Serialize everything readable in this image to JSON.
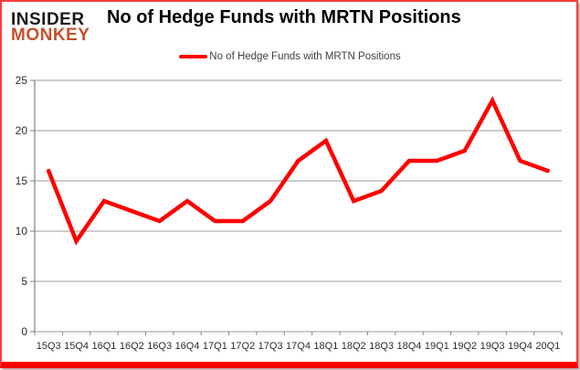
{
  "branding": {
    "logo_line1": "INSIDER",
    "logo_line2": "MONKEY",
    "logo_color_primary": "#1a1a1a",
    "logo_color_secondary": "#c4502c"
  },
  "header": {
    "title": "No of Hedge Funds with MRTN Positions"
  },
  "legend": {
    "label": "No of Hedge Funds with MRTN Positions",
    "swatch_color": "#fe0000"
  },
  "frame": {
    "border_color": "#fe0000"
  },
  "chart_data": {
    "type": "line",
    "title": "No of Hedge Funds with MRTN Positions",
    "categories": [
      "15Q3",
      "15Q4",
      "16Q1",
      "16Q2",
      "16Q3",
      "16Q4",
      "17Q1",
      "17Q2",
      "17Q3",
      "17Q4",
      "18Q1",
      "18Q2",
      "18Q3",
      "18Q4",
      "19Q1",
      "19Q2",
      "19Q3",
      "19Q4",
      "20Q1"
    ],
    "series": [
      {
        "name": "No of Hedge Funds with MRTN Positions",
        "color": "#fe0000",
        "values": [
          16,
          9,
          13,
          12,
          11,
          13,
          11,
          11,
          13,
          17,
          19,
          13,
          14,
          17,
          17,
          18,
          23,
          17,
          16
        ]
      }
    ],
    "xlabel": "",
    "ylabel": "",
    "ylim": [
      0,
      25
    ],
    "yticks": [
      0,
      5,
      10,
      15,
      20,
      25
    ],
    "grid": true,
    "legend_position": "top-center",
    "gridline_color": "#9b9b9b",
    "axis_color": "#808080",
    "tick_label_color": "#2b2b2b"
  }
}
